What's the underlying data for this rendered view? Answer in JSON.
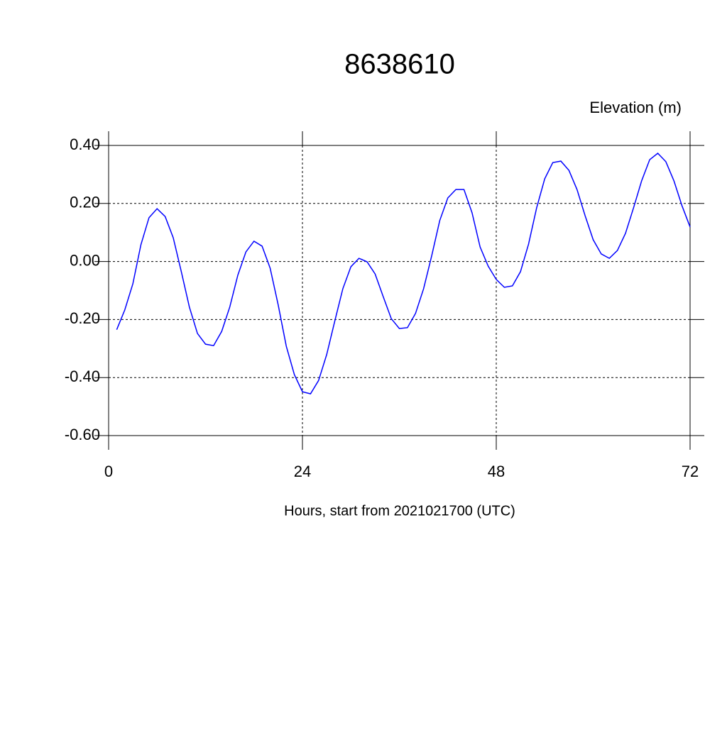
{
  "chart_data": {
    "type": "line",
    "title": "8638610",
    "y_label": "Elevation (m)",
    "x_label": "Hours, start from 2021021700 (UTC)",
    "x": [
      1,
      2,
      3,
      4,
      5,
      6,
      7,
      8,
      9,
      10,
      11,
      12,
      13,
      14,
      15,
      16,
      17,
      18,
      19,
      20,
      21,
      22,
      23,
      24,
      25,
      26,
      27,
      28,
      29,
      30,
      31,
      32,
      33,
      34,
      35,
      36,
      37,
      38,
      39,
      40,
      41,
      42,
      43,
      44,
      45,
      46,
      47,
      48,
      49,
      50,
      51,
      52,
      53,
      54,
      55,
      56,
      57,
      58,
      59,
      60,
      61,
      62,
      63,
      64,
      65,
      66,
      67,
      68,
      69,
      70,
      71,
      72
    ],
    "values": [
      -0.235,
      -0.167,
      -0.077,
      0.058,
      0.151,
      0.182,
      0.155,
      0.082,
      -0.035,
      -0.157,
      -0.248,
      -0.285,
      -0.29,
      -0.241,
      -0.157,
      -0.047,
      0.033,
      0.07,
      0.053,
      -0.023,
      -0.15,
      -0.292,
      -0.39,
      -0.449,
      -0.456,
      -0.41,
      -0.321,
      -0.206,
      -0.094,
      -0.018,
      0.011,
      -0.001,
      -0.043,
      -0.121,
      -0.197,
      -0.231,
      -0.228,
      -0.179,
      -0.094,
      0.019,
      0.141,
      0.219,
      0.248,
      0.248,
      0.168,
      0.05,
      -0.016,
      -0.062,
      -0.089,
      -0.084,
      -0.035,
      0.06,
      0.185,
      0.285,
      0.341,
      0.346,
      0.314,
      0.248,
      0.158,
      0.075,
      0.026,
      0.011,
      0.038,
      0.097,
      0.185,
      0.278,
      0.351,
      0.373,
      0.344,
      0.278,
      0.192,
      0.119
    ],
    "color": "#0000ff",
    "xlim": [
      0,
      72
    ],
    "xticks": [
      0,
      24,
      48,
      72
    ],
    "ylim": [
      -0.6,
      0.4
    ],
    "yticks": [
      {
        "value": -0.6,
        "label": "-0.60"
      },
      {
        "value": -0.4,
        "label": "-0.40"
      },
      {
        "value": -0.2,
        "label": "-0.20"
      },
      {
        "value": 0,
        "label": "0.00"
      },
      {
        "value": 0.2,
        "label": "0.20"
      },
      {
        "value": 0.4,
        "label": "0.40"
      }
    ],
    "grid": true
  }
}
